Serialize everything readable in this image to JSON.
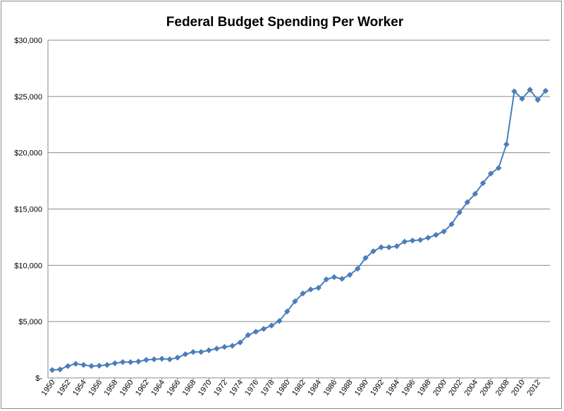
{
  "chart_data": {
    "type": "line",
    "title": "Federal Budget Spending Per Worker",
    "xlabel": "",
    "ylabel": "",
    "ylim": [
      0,
      30000
    ],
    "y_ticks": [
      0,
      5000,
      10000,
      15000,
      20000,
      25000,
      30000
    ],
    "y_tick_labels": [
      "$-",
      "$5,000",
      "$10,000",
      "$15,000",
      "$20,000",
      "$25,000",
      "$30,000"
    ],
    "x_tick_labels": [
      "1950",
      "1952",
      "1954",
      "1956",
      "1958",
      "1960",
      "1962",
      "1964",
      "1966",
      "1968",
      "1970",
      "1972",
      "1974",
      "1976",
      "1978",
      "1980",
      "1982",
      "1984",
      "1986",
      "1988",
      "1990",
      "1992",
      "1994",
      "1996",
      "1998",
      "2000",
      "2002",
      "2004",
      "2006",
      "2008",
      "2010",
      "2012"
    ],
    "grid": true,
    "series": [
      {
        "name": "Federal Budget Spending Per Worker",
        "color": "#4a7ebb",
        "x": [
          1950,
          1951,
          1952,
          1953,
          1954,
          1955,
          1956,
          1957,
          1958,
          1959,
          1960,
          1961,
          1962,
          1963,
          1964,
          1965,
          1966,
          1967,
          1968,
          1969,
          1970,
          1971,
          1972,
          1973,
          1974,
          1975,
          1976,
          1977,
          1978,
          1979,
          1980,
          1981,
          1982,
          1983,
          1984,
          1985,
          1986,
          1987,
          1988,
          1989,
          1990,
          1991,
          1992,
          1993,
          1994,
          1995,
          1996,
          1997,
          1998,
          1999,
          2000,
          2001,
          2002,
          2003,
          2004,
          2005,
          2006,
          2007,
          2008,
          2009,
          2010,
          2011,
          2012,
          2013
        ],
        "values": [
          700,
          750,
          1050,
          1250,
          1150,
          1050,
          1080,
          1150,
          1300,
          1400,
          1400,
          1450,
          1600,
          1650,
          1700,
          1650,
          1800,
          2100,
          2300,
          2300,
          2450,
          2600,
          2750,
          2850,
          3150,
          3800,
          4100,
          4350,
          4650,
          5050,
          5900,
          6800,
          7500,
          7850,
          8000,
          8750,
          8950,
          8800,
          9150,
          9700,
          10650,
          11250,
          11600,
          11600,
          11700,
          12100,
          12200,
          12250,
          12450,
          12700,
          13000,
          13650,
          14700,
          15600,
          16350,
          17300,
          18150,
          18650,
          20750,
          25450,
          24800,
          25600,
          24700,
          25500
        ]
      }
    ]
  }
}
